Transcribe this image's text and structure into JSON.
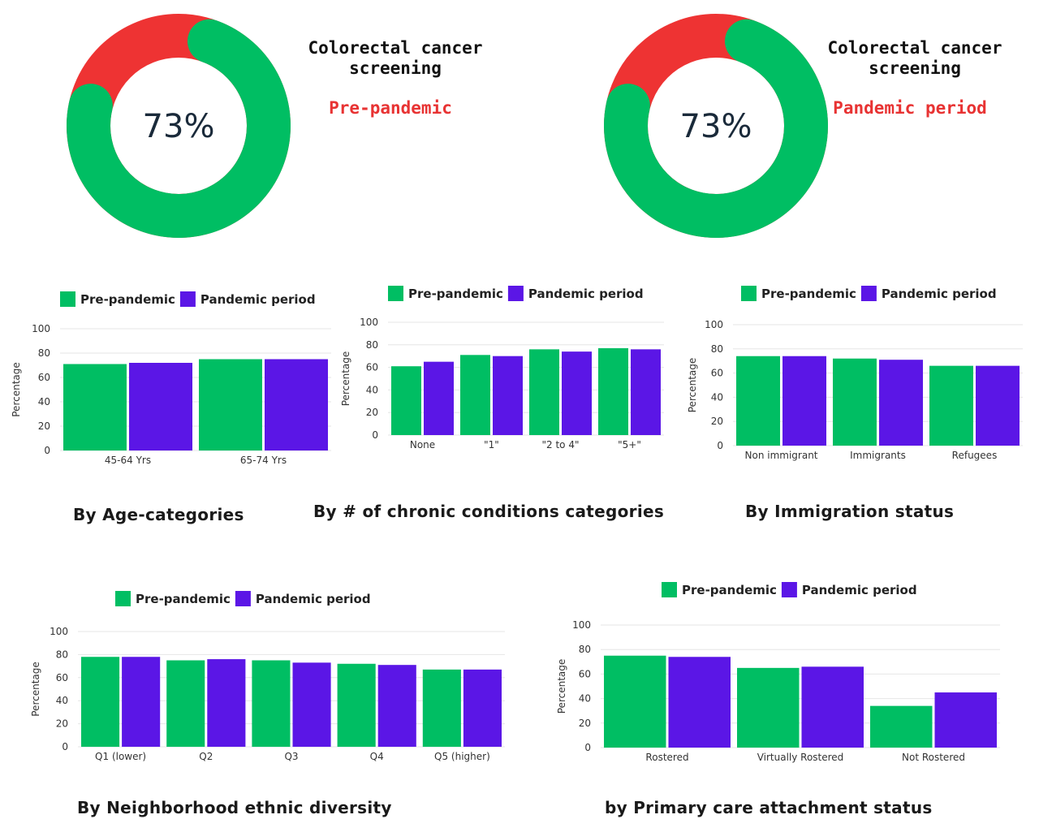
{
  "colors": {
    "pre": "#00be63",
    "pandemic": "#5b16e6",
    "screened": "#00be63",
    "unscreened": "#ee3333",
    "grid": "#e6e6e6"
  },
  "donuts": [
    {
      "value": 73,
      "label": "73%",
      "title": "Colorectal cancer\nscreening",
      "period": "Pre-pandemic"
    },
    {
      "value": 73,
      "label": "73%",
      "title": "Colorectal cancer\nscreening",
      "period": "Pandemic period"
    }
  ],
  "legend": {
    "pre": "Pre-pandemic",
    "pandemic": "Pandemic period"
  },
  "chart_data": [
    {
      "type": "bar",
      "title": "By Age-categories",
      "ylabel": "Percentage",
      "ylim": [
        0,
        100
      ],
      "yticks": [
        0,
        20,
        40,
        60,
        80,
        100
      ],
      "grid": true,
      "legend_position": "top",
      "categories": [
        "45-64 Yrs",
        "65-74 Yrs"
      ],
      "series": [
        {
          "name": "Pre-pandemic",
          "values": [
            71,
            75
          ]
        },
        {
          "name": "Pandemic period",
          "values": [
            72,
            75
          ]
        }
      ]
    },
    {
      "type": "bar",
      "title": "By # of chronic conditions categories",
      "ylabel": "Percentage",
      "ylim": [
        0,
        100
      ],
      "yticks": [
        0,
        20,
        40,
        60,
        80,
        100
      ],
      "grid": true,
      "legend_position": "top",
      "categories": [
        "None",
        "\"1\"",
        "\"2 to 4\"",
        "\"5+\""
      ],
      "series": [
        {
          "name": "Pre-pandemic",
          "values": [
            61,
            71,
            76,
            77
          ]
        },
        {
          "name": "Pandemic period",
          "values": [
            65,
            70,
            74,
            76
          ]
        }
      ]
    },
    {
      "type": "bar",
      "title": "By Immigration status",
      "ylabel": "Percentage",
      "ylim": [
        0,
        100
      ],
      "yticks": [
        0,
        20,
        40,
        60,
        80,
        100
      ],
      "grid": true,
      "legend_position": "top",
      "categories": [
        "Non immigrant",
        "Immigrants",
        "Refugees"
      ],
      "series": [
        {
          "name": "Pre-pandemic",
          "values": [
            74,
            72,
            66
          ]
        },
        {
          "name": "Pandemic period",
          "values": [
            74,
            71,
            66
          ]
        }
      ]
    },
    {
      "type": "bar",
      "title": "By Neighborhood ethnic diversity",
      "ylabel": "Percentage",
      "ylim": [
        0,
        100
      ],
      "yticks": [
        0,
        20,
        40,
        60,
        80,
        100
      ],
      "grid": true,
      "legend_position": "top",
      "categories": [
        "Q1 (lower)",
        "Q2",
        "Q3",
        "Q4",
        "Q5 (higher)"
      ],
      "series": [
        {
          "name": "Pre-pandemic",
          "values": [
            78,
            75,
            75,
            72,
            67
          ]
        },
        {
          "name": "Pandemic period",
          "values": [
            78,
            76,
            73,
            71,
            67
          ]
        }
      ]
    },
    {
      "type": "bar",
      "title": "by Primary care attachment status",
      "ylabel": "Percentage",
      "ylim": [
        0,
        100
      ],
      "yticks": [
        0,
        20,
        40,
        60,
        80,
        100
      ],
      "grid": true,
      "legend_position": "top",
      "categories": [
        "Rostered",
        "Virtually Rostered",
        "Not Rostered"
      ],
      "series": [
        {
          "name": "Pre-pandemic",
          "values": [
            75,
            65,
            34
          ]
        },
        {
          "name": "Pandemic period",
          "values": [
            74,
            66,
            45
          ]
        }
      ]
    }
  ]
}
